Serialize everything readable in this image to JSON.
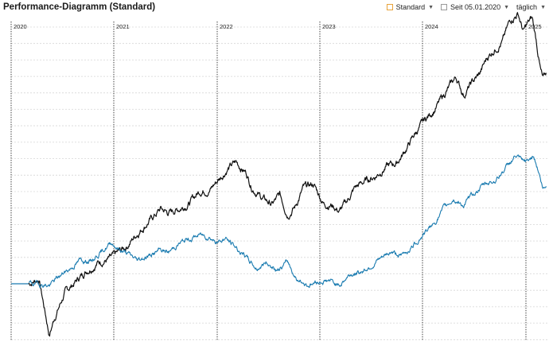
{
  "header": {
    "title": "Performance-Diagramm (Standard)",
    "mode_label": "Standard",
    "since_label": "Seit 05.01.2020",
    "interval_label": "täglich"
  },
  "colors": {
    "series_black": "#111111",
    "series_blue": "#1a7bb0",
    "year_line": "#444444",
    "grid": "#d6d6d6",
    "standard_icon": "#e8a33a"
  },
  "chart_data": {
    "type": "line",
    "year_labels": [
      "2020",
      "2021",
      "2022",
      "2023",
      "2024",
      "2025"
    ],
    "grid": true,
    "series": [
      {
        "key": "black",
        "anchors": [
          [
            0,
            0
          ],
          [
            0.02,
            0.6
          ],
          [
            0.025,
            -1.1
          ],
          [
            0.04,
            -6.1
          ],
          [
            0.05,
            -4
          ],
          [
            0.07,
            -1.1
          ],
          [
            0.11,
            1.5
          ],
          [
            0.135,
            2.6
          ],
          [
            0.16,
            3
          ],
          [
            0.19,
            4.5
          ],
          [
            0.21,
            6
          ],
          [
            0.23,
            7.3
          ],
          [
            0.245,
            8.2
          ],
          [
            0.255,
            8.9
          ],
          [
            0.27,
            8.4
          ],
          [
            0.29,
            8.9
          ],
          [
            0.31,
            9.6
          ],
          [
            0.33,
            11
          ],
          [
            0.35,
            11.2
          ],
          [
            0.37,
            12.6
          ],
          [
            0.385,
            13.7
          ],
          [
            0.4,
            14.4
          ],
          [
            0.41,
            13.8
          ],
          [
            0.42,
            13.2
          ],
          [
            0.43,
            11.6
          ],
          [
            0.45,
            10.2
          ],
          [
            0.47,
            9.4
          ],
          [
            0.485,
            10.5
          ],
          [
            0.5,
            8.3
          ],
          [
            0.515,
            9.2
          ],
          [
            0.53,
            11.3
          ],
          [
            0.55,
            11.8
          ],
          [
            0.57,
            9.5
          ],
          [
            0.585,
            9.4
          ],
          [
            0.6,
            8.6
          ],
          [
            0.615,
            9.8
          ],
          [
            0.63,
            11.4
          ],
          [
            0.65,
            12.2
          ],
          [
            0.67,
            12.8
          ],
          [
            0.69,
            13.9
          ],
          [
            0.71,
            14.3
          ],
          [
            0.725,
            15.6
          ],
          [
            0.745,
            17.7
          ],
          [
            0.765,
            19.4
          ],
          [
            0.785,
            20.8
          ],
          [
            0.805,
            22.7
          ],
          [
            0.825,
            24.5
          ],
          [
            0.84,
            22.4
          ],
          [
            0.855,
            23.8
          ],
          [
            0.87,
            24.8
          ],
          [
            0.885,
            26.8
          ],
          [
            0.9,
            27.9
          ],
          [
            0.915,
            28.8
          ],
          [
            0.93,
            31.3
          ],
          [
            0.945,
            32.1
          ],
          [
            0.955,
            29.9
          ],
          [
            0.963,
            30.8
          ],
          [
            0.972,
            31.5
          ],
          [
            0.98,
            28.9
          ],
          [
            0.988,
            25.5
          ],
          [
            0.993,
            24.1
          ],
          [
            1,
            25.1
          ]
        ],
        "noise": 0.55,
        "seed": 7
      },
      {
        "key": "blue",
        "anchors": [
          [
            0,
            0
          ],
          [
            0.02,
            0
          ],
          [
            0.04,
            -0.2
          ],
          [
            0.06,
            0.9
          ],
          [
            0.08,
            1.8
          ],
          [
            0.1,
            2.8
          ],
          [
            0.12,
            2.7
          ],
          [
            0.14,
            3.8
          ],
          [
            0.16,
            4.9
          ],
          [
            0.175,
            4.1
          ],
          [
            0.19,
            3.6
          ],
          [
            0.21,
            2.8
          ],
          [
            0.225,
            3.2
          ],
          [
            0.24,
            3.5
          ],
          [
            0.255,
            4
          ],
          [
            0.27,
            3.7
          ],
          [
            0.29,
            4.8
          ],
          [
            0.31,
            5.3
          ],
          [
            0.33,
            5.8
          ],
          [
            0.35,
            5.6
          ],
          [
            0.365,
            4.9
          ],
          [
            0.38,
            5.4
          ],
          [
            0.4,
            4.3
          ],
          [
            0.42,
            3.1
          ],
          [
            0.44,
            1.8
          ],
          [
            0.46,
            2.6
          ],
          [
            0.48,
            1.4
          ],
          [
            0.5,
            2.6
          ],
          [
            0.52,
            0.3
          ],
          [
            0.54,
            -0.1
          ],
          [
            0.56,
            0.2
          ],
          [
            0.58,
            0.4
          ],
          [
            0.6,
            -0.2
          ],
          [
            0.62,
            1.1
          ],
          [
            0.64,
            1.4
          ],
          [
            0.66,
            2.1
          ],
          [
            0.68,
            2.9
          ],
          [
            0.7,
            3.8
          ],
          [
            0.72,
            3.3
          ],
          [
            0.74,
            4.4
          ],
          [
            0.76,
            5.8
          ],
          [
            0.78,
            6.9
          ],
          [
            0.8,
            8.8
          ],
          [
            0.82,
            10.1
          ],
          [
            0.84,
            9.3
          ],
          [
            0.86,
            10.8
          ],
          [
            0.88,
            11.8
          ],
          [
            0.9,
            12.3
          ],
          [
            0.92,
            13.7
          ],
          [
            0.94,
            15.2
          ],
          [
            0.955,
            14.4
          ],
          [
            0.965,
            14.6
          ],
          [
            0.975,
            15.4
          ],
          [
            0.985,
            13.3
          ],
          [
            0.993,
            11.2
          ],
          [
            1,
            11.6
          ]
        ],
        "noise": 0.4,
        "seed": 19
      }
    ]
  }
}
